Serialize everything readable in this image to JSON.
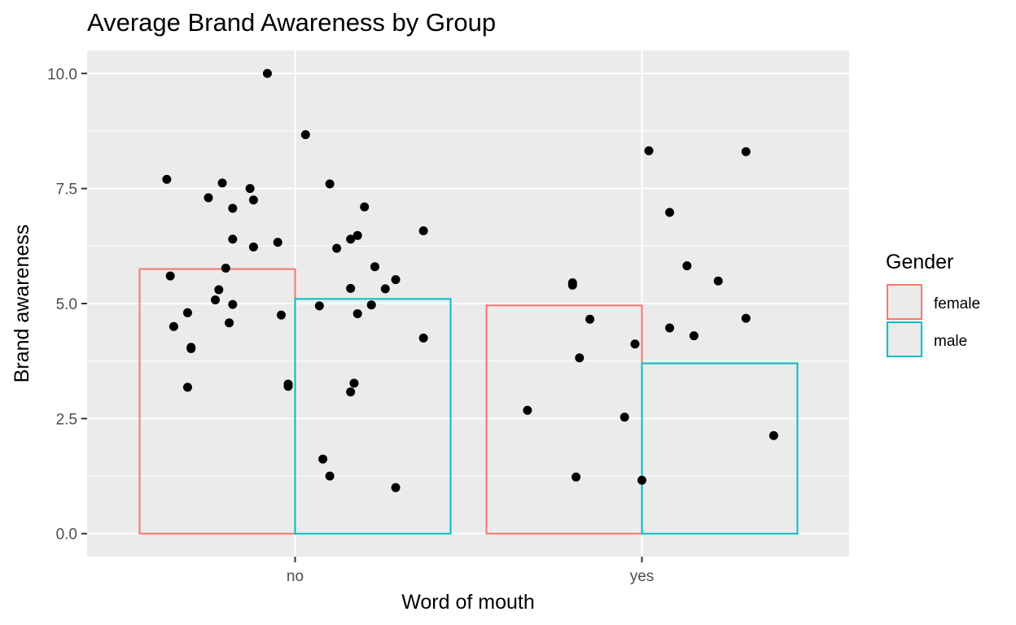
{
  "chart_data": {
    "type": "bar",
    "title": "Average Brand Awareness by Group",
    "xlabel": "Word of mouth",
    "ylabel": "Brand awareness",
    "categories": [
      "no",
      "yes"
    ],
    "ylim": [
      -0.5,
      10.5
    ],
    "yticks": [
      0.0,
      2.5,
      5.0,
      7.5,
      10.0
    ],
    "ytick_labels": [
      "0.0",
      "2.5",
      "5.0",
      "7.5",
      "10.0"
    ],
    "grid": true,
    "legend": {
      "title": "Gender",
      "position": "right",
      "entries": [
        "female",
        "male"
      ]
    },
    "colors": {
      "female": "#F8766D",
      "male": "#00BFC4",
      "panel": "#EBEBEB",
      "grid": "#FFFFFF",
      "points": "#000000"
    },
    "series": [
      {
        "name": "female",
        "values": [
          5.75,
          4.96
        ]
      },
      {
        "name": "male",
        "values": [
          5.1,
          3.7
        ]
      }
    ],
    "points": [
      {
        "x": -0.37,
        "y": 7.7
      },
      {
        "x": -0.36,
        "y": 5.6
      },
      {
        "x": -0.35,
        "y": 4.5
      },
      {
        "x": -0.31,
        "y": 4.8
      },
      {
        "x": -0.31,
        "y": 3.18
      },
      {
        "x": -0.3,
        "y": 4.02
      },
      {
        "x": -0.3,
        "y": 4.05
      },
      {
        "x": -0.25,
        "y": 7.3
      },
      {
        "x": -0.23,
        "y": 5.08
      },
      {
        "x": -0.22,
        "y": 5.3
      },
      {
        "x": -0.21,
        "y": 7.62
      },
      {
        "x": -0.2,
        "y": 5.77
      },
      {
        "x": -0.19,
        "y": 4.58
      },
      {
        "x": -0.18,
        "y": 4.98
      },
      {
        "x": -0.18,
        "y": 7.07
      },
      {
        "x": -0.18,
        "y": 6.4
      },
      {
        "x": -0.13,
        "y": 7.5
      },
      {
        "x": -0.12,
        "y": 7.25
      },
      {
        "x": -0.12,
        "y": 6.23
      },
      {
        "x": -0.08,
        "y": 10.0
      },
      {
        "x": -0.05,
        "y": 6.33
      },
      {
        "x": -0.04,
        "y": 4.75
      },
      {
        "x": -0.02,
        "y": 3.2
      },
      {
        "x": -0.02,
        "y": 3.25
      },
      {
        "x": 0.03,
        "y": 8.67
      },
      {
        "x": 0.07,
        "y": 4.95
      },
      {
        "x": 0.08,
        "y": 1.62
      },
      {
        "x": 0.1,
        "y": 1.25
      },
      {
        "x": 0.1,
        "y": 7.6
      },
      {
        "x": 0.12,
        "y": 6.2
      },
      {
        "x": 0.16,
        "y": 6.4
      },
      {
        "x": 0.16,
        "y": 3.08
      },
      {
        "x": 0.16,
        "y": 5.33
      },
      {
        "x": 0.17,
        "y": 3.27
      },
      {
        "x": 0.18,
        "y": 6.48
      },
      {
        "x": 0.18,
        "y": 4.78
      },
      {
        "x": 0.2,
        "y": 7.1
      },
      {
        "x": 0.22,
        "y": 4.97
      },
      {
        "x": 0.23,
        "y": 5.8
      },
      {
        "x": 0.26,
        "y": 5.32
      },
      {
        "x": 0.29,
        "y": 5.52
      },
      {
        "x": 0.29,
        "y": 1.0
      },
      {
        "x": 0.37,
        "y": 6.58
      },
      {
        "x": 0.37,
        "y": 4.25
      },
      {
        "x": 0.67,
        "y": 2.68
      },
      {
        "x": 0.8,
        "y": 5.45
      },
      {
        "x": 0.8,
        "y": 5.4
      },
      {
        "x": 0.81,
        "y": 1.23
      },
      {
        "x": 0.82,
        "y": 3.82
      },
      {
        "x": 0.85,
        "y": 4.66
      },
      {
        "x": 0.95,
        "y": 2.53
      },
      {
        "x": 0.98,
        "y": 4.12
      },
      {
        "x": 1.0,
        "y": 1.16
      },
      {
        "x": 1.02,
        "y": 8.32
      },
      {
        "x": 1.08,
        "y": 6.98
      },
      {
        "x": 1.08,
        "y": 4.47
      },
      {
        "x": 1.13,
        "y": 5.82
      },
      {
        "x": 1.15,
        "y": 4.3
      },
      {
        "x": 1.22,
        "y": 5.49
      },
      {
        "x": 1.3,
        "y": 8.3
      },
      {
        "x": 1.3,
        "y": 4.68
      },
      {
        "x": 1.38,
        "y": 2.13
      }
    ]
  }
}
